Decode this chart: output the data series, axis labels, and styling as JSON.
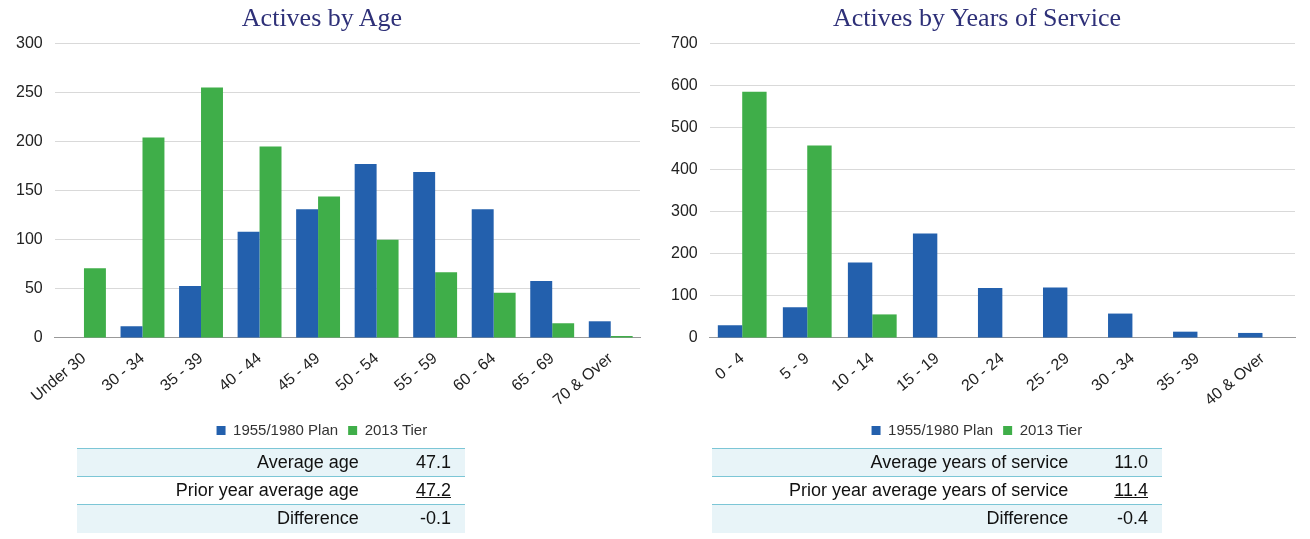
{
  "chart_data": [
    {
      "type": "bar",
      "title": "Actives by Age",
      "categories": [
        "Under 30",
        "30 - 34",
        "35 - 39",
        "40 - 44",
        "45 - 49",
        "50 - 54",
        "55 - 59",
        "60 - 64",
        "65 - 69",
        "70 & Over"
      ],
      "series": [
        {
          "name": "1955/1980 Plan",
          "color": "#2360ad",
          "values": [
            0,
            12,
            53,
            108,
            131,
            177,
            169,
            131,
            58,
            17
          ]
        },
        {
          "name": "2013 Tier",
          "color": "#3fae49",
          "values": [
            71,
            204,
            255,
            195,
            144,
            100,
            67,
            46,
            15,
            2
          ]
        }
      ],
      "ylim": [
        0,
        300
      ],
      "yticks": [
        0,
        50,
        100,
        150,
        200,
        250,
        300
      ],
      "grid": "y",
      "legend": "bottom",
      "annotations": [
        "Average age",
        "47.1",
        "Prior year average age",
        "47.2",
        "Difference",
        "-0.1"
      ]
    },
    {
      "type": "bar",
      "title": "Actives by Years of Service",
      "categories": [
        "0 - 4",
        "5 - 9",
        "10 - 14",
        "15 - 19",
        "20 - 24",
        "25 - 29",
        "30 - 34",
        "35 - 39",
        "40 & Over"
      ],
      "series": [
        {
          "name": "1955/1980 Plan",
          "color": "#2360ad",
          "values": [
            30,
            73,
            179,
            248,
            119,
            120,
            58,
            15,
            12
          ]
        },
        {
          "name": "2013 Tier",
          "color": "#3fae49",
          "values": [
            585,
            457,
            56,
            0,
            0,
            0,
            0,
            0,
            0
          ]
        }
      ],
      "ylim": [
        0,
        700
      ],
      "yticks": [
        0,
        100,
        200,
        300,
        400,
        500,
        600,
        700
      ],
      "grid": "y",
      "legend": "bottom",
      "annotations": [
        "Average years of service",
        "11.0",
        "Prior year average years of service",
        "11.4",
        "Difference",
        "-0.4"
      ]
    }
  ]
}
